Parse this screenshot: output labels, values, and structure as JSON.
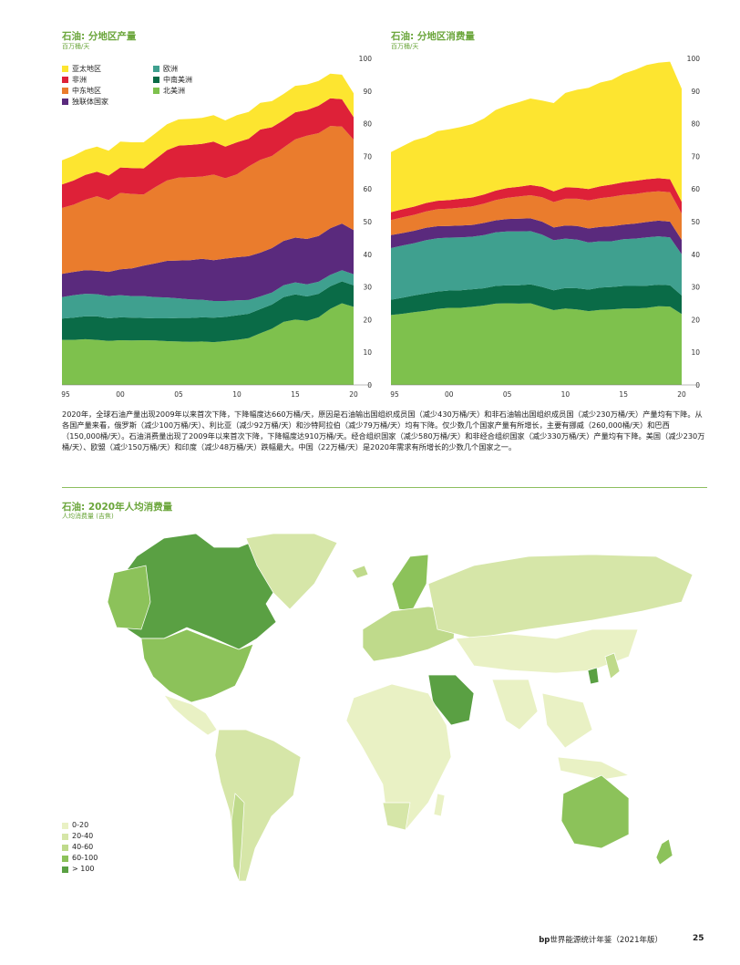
{
  "colors": {
    "asia_pacific": "#fde530",
    "africa": "#de2138",
    "middle_east": "#ea7c2d",
    "cis": "#5a2a7d",
    "europe": "#3fa08f",
    "sca": "#0a6b47",
    "north_america": "#7ec14d",
    "map_0_20": "#e9f1c4",
    "map_20_40": "#d6e6a8",
    "map_40_60": "#bfda8b",
    "map_60_100": "#8cc25a",
    "map_gt_100": "#5aa043",
    "accent": "#6aa53a"
  },
  "chart_data": [
    {
      "type": "area",
      "stacked": true,
      "title": "石油: 分地区产量",
      "ylabel": "百万桶/天",
      "ylim": [
        0,
        100
      ],
      "yticks": [
        "0",
        "10",
        "20",
        "30",
        "40",
        "50",
        "60",
        "70",
        "80",
        "90",
        "100"
      ],
      "x": [
        1995,
        1996,
        1997,
        1998,
        1999,
        2000,
        2001,
        2002,
        2003,
        2004,
        2005,
        2006,
        2007,
        2008,
        2009,
        2010,
        2011,
        2012,
        2013,
        2014,
        2015,
        2016,
        2017,
        2018,
        2019,
        2020
      ],
      "xticks": [
        "95",
        "00",
        "05",
        "10",
        "15",
        "20"
      ],
      "series": [
        {
          "name": "北美洲",
          "color_key": "north_america",
          "values": [
            13.8,
            13.8,
            14.0,
            13.8,
            13.5,
            13.7,
            13.6,
            13.7,
            13.6,
            13.4,
            13.3,
            13.2,
            13.3,
            13.1,
            13.4,
            13.8,
            14.3,
            15.8,
            17.2,
            19.3,
            20.0,
            19.6,
            20.7,
            23.3,
            25.0,
            23.9
          ]
        },
        {
          "name": "中南美洲",
          "color_key": "sca",
          "values": [
            6.5,
            6.8,
            7.0,
            7.2,
            6.9,
            7.0,
            7.0,
            6.8,
            6.8,
            7.0,
            7.2,
            7.3,
            7.4,
            7.5,
            7.4,
            7.5,
            7.5,
            7.4,
            7.4,
            7.6,
            7.7,
            7.5,
            7.2,
            6.9,
            6.7,
            6.6
          ]
        },
        {
          "name": "欧洲",
          "color_key": "europe",
          "values": [
            6.6,
            6.9,
            6.9,
            6.8,
            6.8,
            6.8,
            6.6,
            6.7,
            6.5,
            6.4,
            6.0,
            5.7,
            5.4,
            5.1,
            4.9,
            4.6,
            4.2,
            3.9,
            3.7,
            3.6,
            3.7,
            3.7,
            3.7,
            3.5,
            3.4,
            3.4
          ]
        },
        {
          "name": "独联体国家",
          "color_key": "cis",
          "values": [
            7.1,
            7.1,
            7.2,
            7.2,
            7.4,
            7.9,
            8.5,
            9.3,
            10.3,
            11.2,
            11.6,
            12.0,
            12.5,
            12.5,
            13.0,
            13.2,
            13.4,
            13.4,
            13.6,
            13.6,
            13.7,
            13.9,
            14.0,
            14.3,
            14.3,
            13.5
          ]
        },
        {
          "name": "中东地区",
          "color_key": "middle_east",
          "values": [
            20.2,
            20.6,
            21.6,
            22.8,
            22.0,
            23.4,
            22.8,
            21.8,
            23.4,
            24.6,
            25.4,
            25.4,
            25.2,
            26.2,
            24.6,
            25.4,
            27.5,
            28.4,
            28.2,
            28.6,
            30.1,
            31.6,
            31.5,
            31.3,
            29.7,
            27.7
          ]
        },
        {
          "name": "非洲",
          "color_key": "africa",
          "values": [
            7.2,
            7.4,
            7.6,
            7.5,
            7.5,
            7.8,
            7.9,
            8.0,
            8.5,
            9.3,
            9.8,
            9.9,
            10.0,
            10.1,
            9.7,
            9.8,
            8.5,
            9.3,
            8.8,
            8.4,
            8.3,
            7.9,
            8.4,
            8.5,
            8.4,
            6.9
          ]
        },
        {
          "name": "亚太地区",
          "color_key": "asia_pacific",
          "values": [
            7.4,
            7.6,
            7.7,
            7.7,
            7.6,
            7.9,
            7.9,
            8.0,
            7.9,
            7.9,
            8.0,
            8.0,
            8.0,
            8.1,
            8.0,
            8.3,
            8.2,
            8.2,
            8.0,
            8.0,
            8.1,
            7.8,
            7.6,
            7.5,
            7.5,
            7.3
          ]
        }
      ]
    },
    {
      "type": "area",
      "stacked": true,
      "title": "石油: 分地区消费量",
      "ylabel": "百万桶/天",
      "ylim": [
        0,
        100
      ],
      "yticks": [
        "0",
        "10",
        "20",
        "30",
        "40",
        "50",
        "60",
        "70",
        "80",
        "90",
        "100"
      ],
      "x": [
        1995,
        1996,
        1997,
        1998,
        1999,
        2000,
        2001,
        2002,
        2003,
        2004,
        2005,
        2006,
        2007,
        2008,
        2009,
        2010,
        2011,
        2012,
        2013,
        2014,
        2015,
        2016,
        2017,
        2018,
        2019,
        2020
      ],
      "xticks": [
        "95",
        "00",
        "05",
        "10",
        "15",
        "20"
      ],
      "series": [
        {
          "name": "北美洲",
          "color_key": "north_america",
          "values": [
            21.4,
            21.8,
            22.3,
            22.7,
            23.3,
            23.6,
            23.6,
            23.9,
            24.3,
            24.9,
            25.0,
            24.9,
            25.0,
            23.9,
            22.9,
            23.4,
            23.1,
            22.6,
            23.0,
            23.1,
            23.4,
            23.4,
            23.6,
            24.1,
            24.0,
            21.7
          ]
        },
        {
          "name": "中南美洲",
          "color_key": "sca",
          "values": [
            4.7,
            4.9,
            5.1,
            5.3,
            5.3,
            5.3,
            5.4,
            5.4,
            5.3,
            5.4,
            5.5,
            5.6,
            5.8,
            6.1,
            6.1,
            6.3,
            6.5,
            6.6,
            6.8,
            6.9,
            6.9,
            6.9,
            6.8,
            6.6,
            6.5,
            5.7
          ]
        },
        {
          "name": "欧洲",
          "color_key": "europe",
          "values": [
            15.8,
            16.0,
            16.0,
            16.3,
            16.3,
            16.2,
            16.2,
            16.1,
            16.3,
            16.4,
            16.5,
            16.5,
            16.3,
            16.0,
            15.3,
            15.1,
            14.9,
            14.4,
            14.2,
            14.0,
            14.3,
            14.5,
            14.8,
            14.8,
            14.7,
            12.6
          ]
        },
        {
          "name": "独联体国家",
          "color_key": "cis",
          "values": [
            4.0,
            3.8,
            3.8,
            3.8,
            3.7,
            3.6,
            3.6,
            3.6,
            3.7,
            3.7,
            3.8,
            3.9,
            3.9,
            4.0,
            3.9,
            4.0,
            4.2,
            4.3,
            4.4,
            4.6,
            4.5,
            4.6,
            4.7,
            4.8,
            4.8,
            4.4
          ]
        },
        {
          "name": "中东地区",
          "color_key": "middle_east",
          "values": [
            4.6,
            4.8,
            4.9,
            5.0,
            5.2,
            5.3,
            5.5,
            5.7,
            5.9,
            6.2,
            6.5,
            6.8,
            7.1,
            7.5,
            7.8,
            8.2,
            8.3,
            8.6,
            8.8,
            9.0,
            9.1,
            9.1,
            9.1,
            9.0,
            9.0,
            8.1
          ]
        },
        {
          "name": "非洲",
          "color_key": "africa",
          "values": [
            2.4,
            2.5,
            2.5,
            2.6,
            2.6,
            2.6,
            2.7,
            2.7,
            2.8,
            2.9,
            3.0,
            3.0,
            3.1,
            3.2,
            3.3,
            3.5,
            3.4,
            3.5,
            3.6,
            3.8,
            3.9,
            4.0,
            4.0,
            4.0,
            4.0,
            3.6
          ]
        },
        {
          "name": "亚太地区",
          "color_key": "asia_pacific",
          "values": [
            18.4,
            19.3,
            20.3,
            20.2,
            21.3,
            21.7,
            22.0,
            22.5,
            23.3,
            24.7,
            25.3,
            25.9,
            26.5,
            26.4,
            27.0,
            28.9,
            30.0,
            31.0,
            31.8,
            32.0,
            33.2,
            34.0,
            35.0,
            35.4,
            36.0,
            34.6
          ]
        }
      ]
    },
    {
      "type": "map",
      "title": "石油: 2020年人均消费量",
      "ylabel": "人均消费量 (吉焦)",
      "legend": [
        {
          "label": "0-20",
          "color_key": "map_0_20"
        },
        {
          "label": "20-40",
          "color_key": "map_20_40"
        },
        {
          "label": "40-60",
          "color_key": "map_40_60"
        },
        {
          "label": "60-100",
          "color_key": "map_60_100"
        },
        {
          "label": "> 100",
          "color_key": "map_gt_100"
        }
      ]
    }
  ],
  "paragraph": "2020年，全球石油产量出现2009年以来首次下降，下降幅度达660万桶/天，原因是石油输出国组织成员国（减少430万桶/天）和非石油输出国组织成员国（减少230万桶/天）产量均有下降。从各国产量来看，俄罗斯（减少100万桶/天）、利比亚（减少92万桶/天）和沙特阿拉伯（减少79万桶/天）均有下降。仅少数几个国家产量有所增长，主要有挪威（260,000桶/天）和巴西（150,000桶/天）。石油消费量出现了2009年以来首次下降，下降幅度达910万桶/天。经合组织国家（减少580万桶/天）和非经合组织国家（减少330万桶/天）产量均有下降。美国（减少230万桶/天）、欧盟（减少150万桶/天）和印度（减少48万桶/天）跌幅最大。中国（22万桶/天）是2020年需求有所增长的少数几个国家之一。",
  "footer": {
    "brand": "bp",
    "title": "世界能源统计年鉴（2021年版）",
    "page": "25"
  }
}
